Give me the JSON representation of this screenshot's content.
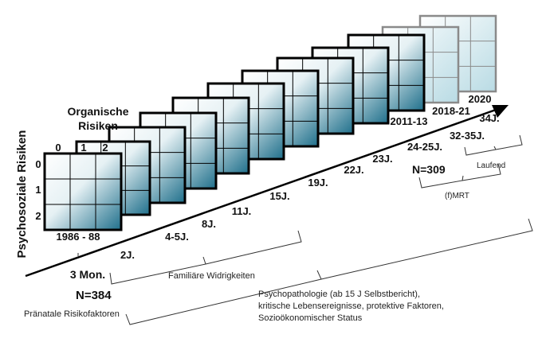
{
  "y_axis_label": "Psychosoziale Risiken",
  "organic_label_line1": "Organische",
  "organic_label_line2": "Risiken",
  "grid_col_labels": [
    "0",
    "1",
    "2"
  ],
  "grid_row_labels": [
    "0",
    "1",
    "2"
  ],
  "time_points": [
    {
      "label": "1986 - 88"
    },
    {
      "label": "3 Mon."
    },
    {
      "label": "2J."
    },
    {
      "label": "4-5J."
    },
    {
      "label": "8J."
    },
    {
      "label": "11J."
    },
    {
      "label": "15J."
    },
    {
      "label": "19J."
    },
    {
      "label": "22J."
    },
    {
      "label": "23J."
    },
    {
      "label": "24-25J."
    },
    {
      "label": "32-35J."
    },
    {
      "label": "34J."
    }
  ],
  "year_labels": [
    "2011-13",
    "2018-21",
    "2020"
  ],
  "n_initial": "N=384",
  "n_later": "N=309",
  "bracket_labels": {
    "prenatal": "Pränatale Risikofaktoren",
    "familial": "Familiäre Widrigkeiten",
    "mri": "(f)MRT",
    "ongoing": "Laufend",
    "psychopathology": [
      "Psychopathologie (ab 15 J Selbstbericht),",
      "kritische Lebensereignisse, protektive Faktoren,",
      "Sozioökonomischer Status"
    ]
  },
  "colors": {
    "teal": "#1f6f8b",
    "grid_border": "#000000",
    "faded_border": "#888888",
    "arrow": "#000000"
  }
}
